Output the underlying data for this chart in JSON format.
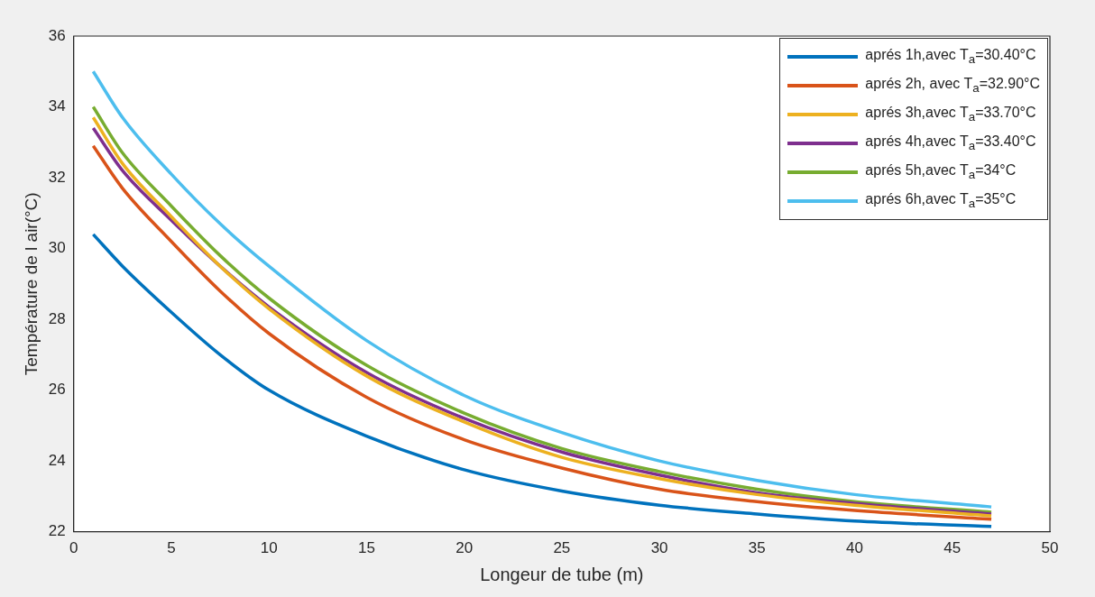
{
  "chart_data": {
    "type": "line",
    "xlabel": "Longeur de tube (m)",
    "ylabel": "Température de l air(°C)",
    "x": [
      1,
      2.5,
      5,
      7.5,
      10,
      15,
      20,
      25,
      30,
      35,
      40,
      47
    ],
    "xlim": [
      0,
      50
    ],
    "xticks": [
      0,
      5,
      10,
      15,
      20,
      25,
      30,
      35,
      40,
      45,
      50
    ],
    "ylim": [
      22,
      36
    ],
    "yticks": [
      22,
      24,
      26,
      28,
      30,
      32,
      34,
      36
    ],
    "grid": false,
    "legend": "top right",
    "marker": "none",
    "line_style": "solid",
    "series": [
      {
        "name": "aprés 1h,avec T$_{a}$=30.40°C",
        "color": "#0072bd",
        "values": [
          30.4,
          29.5,
          28.2,
          27.0,
          26.0,
          24.7,
          23.75,
          23.15,
          22.75,
          22.5,
          22.3,
          22.15
        ]
      },
      {
        "name": "aprés 2h, avec T$_{a}$=32.90°C",
        "color": "#d95319",
        "values": [
          32.9,
          31.7,
          30.2,
          28.8,
          27.6,
          25.8,
          24.6,
          23.8,
          23.2,
          22.85,
          22.6,
          22.35
        ]
      },
      {
        "name": "aprés 3h,avec T$_{a}$=33.70°C",
        "color": "#edb120",
        "values": [
          33.7,
          32.4,
          30.9,
          29.5,
          28.3,
          26.4,
          25.1,
          24.1,
          23.5,
          23.05,
          22.75,
          22.45
        ]
      },
      {
        "name": "aprés 4h,avec T$_{a}$=33.40°C",
        "color": "#7e2f8e",
        "values": [
          33.4,
          32.2,
          30.8,
          29.5,
          28.35,
          26.5,
          25.2,
          24.25,
          23.6,
          23.1,
          22.8,
          22.5
        ]
      },
      {
        "name": "aprés 5h,avec T$_{a}$=34°C",
        "color": "#77ac30",
        "values": [
          34.0,
          32.7,
          31.2,
          29.8,
          28.6,
          26.7,
          25.35,
          24.35,
          23.7,
          23.2,
          22.85,
          22.55
        ]
      },
      {
        "name": "aprés 6h,avec T$_{a}$=35°C",
        "color": "#4dbeee",
        "values": [
          35.0,
          33.7,
          32.1,
          30.7,
          29.5,
          27.4,
          25.85,
          24.8,
          24.0,
          23.45,
          23.05,
          22.7
        ]
      }
    ]
  }
}
